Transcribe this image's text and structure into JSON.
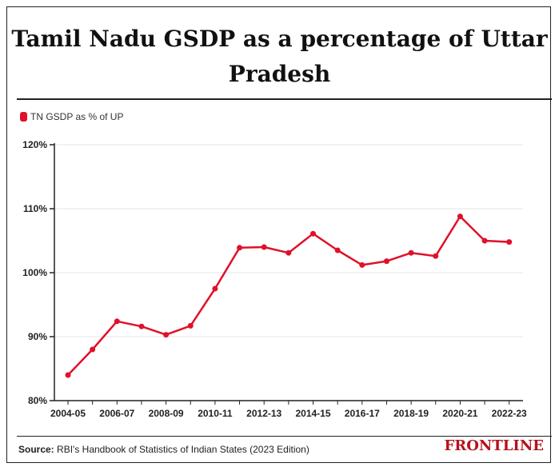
{
  "header": {
    "title_line1": "Tamil Nadu GSDP as a percentage of Uttar",
    "title_line2": "Pradesh"
  },
  "footer": {
    "source_label": "Source:",
    "source_text": "RBI's Handbook of Statistics of Indian States (2023 Edition)",
    "brand": "FRONTLINE"
  },
  "colors": {
    "series": "#e0112b",
    "brand": "#b5121b"
  },
  "chart_data": {
    "type": "line",
    "title": "Tamil Nadu GSDP as a percentage of Uttar Pradesh",
    "xlabel": "",
    "ylabel": "",
    "legend_position": "top-left",
    "grid": true,
    "ylim": [
      80,
      120
    ],
    "y_ticks": [
      80,
      90,
      100,
      110,
      120
    ],
    "y_tick_labels": [
      "80%",
      "90%",
      "100%",
      "110%",
      "120%"
    ],
    "x": [
      "2004-05",
      "2005-06",
      "2006-07",
      "2007-08",
      "2008-09",
      "2009-10",
      "2010-11",
      "2011-12",
      "2012-13",
      "2013-14",
      "2014-15",
      "2015-16",
      "2016-17",
      "2017-18",
      "2018-19",
      "2019-20",
      "2020-21",
      "2021-22",
      "2022-23"
    ],
    "x_tick_labels": [
      "2004-05",
      "2006-07",
      "2008-09",
      "2010-11",
      "2012-13",
      "2014-15",
      "2016-17",
      "2018-19",
      "2020-21",
      "2022-23"
    ],
    "series": [
      {
        "name": "TN GSDP as % of UP",
        "values": [
          84.0,
          88.0,
          92.4,
          91.6,
          90.3,
          91.7,
          97.5,
          103.9,
          104.0,
          103.1,
          106.1,
          103.5,
          101.2,
          101.8,
          103.1,
          102.6,
          108.8,
          105.0,
          104.8
        ]
      }
    ]
  }
}
